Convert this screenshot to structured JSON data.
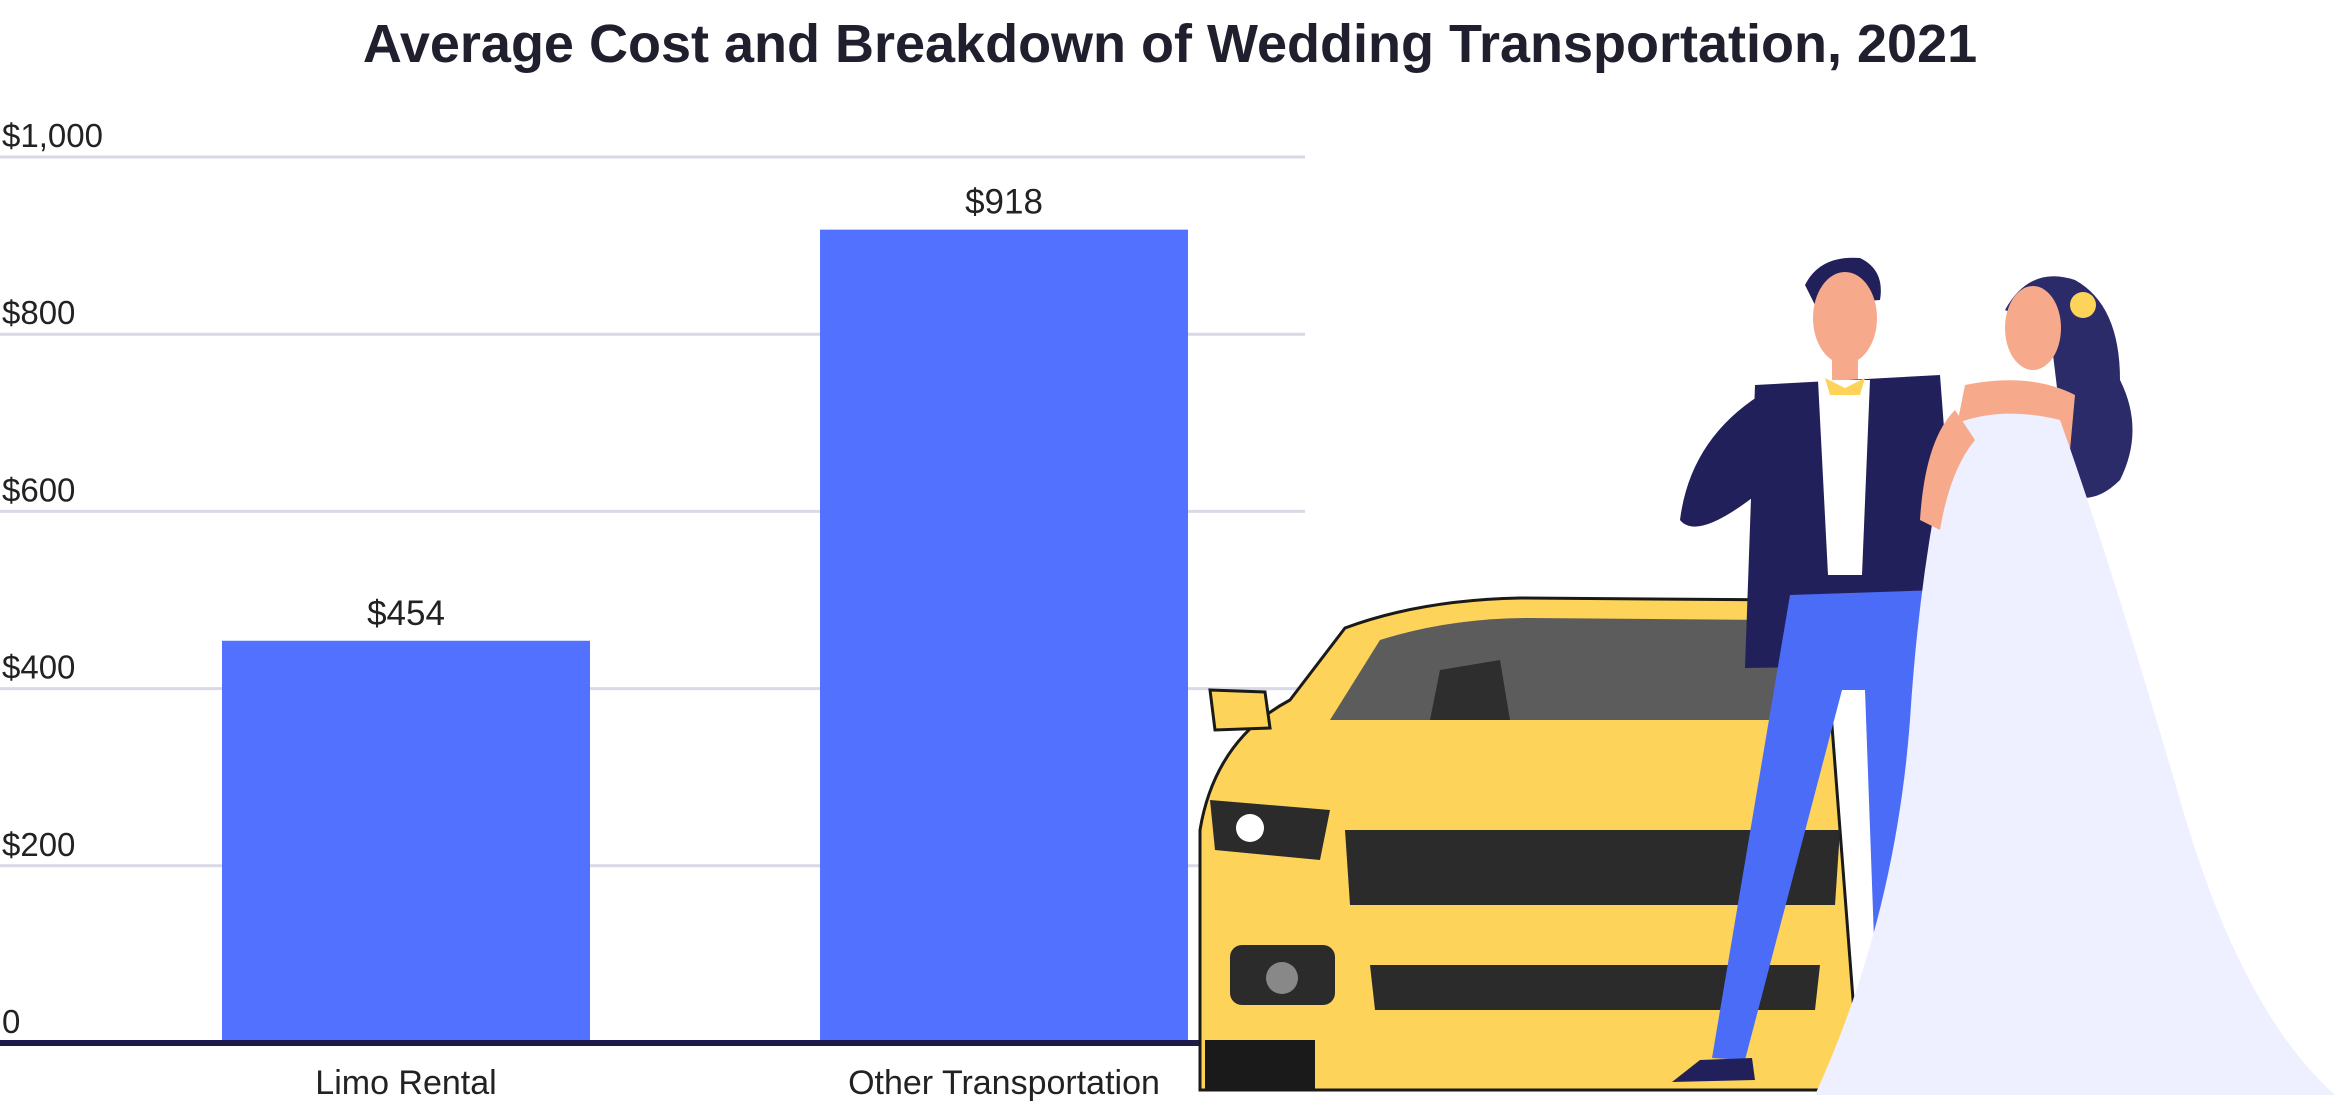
{
  "chart_data": {
    "type": "bar",
    "title": "Average Cost and Breakdown of Wedding Transportation, 2021",
    "xlabel": "",
    "ylabel": "",
    "categories": [
      "Limo Rental",
      "Other Transportation"
    ],
    "values": [
      454,
      918
    ],
    "data_labels": [
      "$454",
      "$918"
    ],
    "ylim": [
      0,
      1000
    ],
    "yticks": [
      0,
      200,
      400,
      600,
      800,
      1000
    ],
    "ytick_labels": [
      "0",
      "$200",
      "$400",
      "$600",
      "$800",
      "$1,000"
    ],
    "grid": true,
    "legend": "none",
    "colors": {
      "bar": "#5271ff",
      "axis": "#1e1b4b",
      "grid": "#d9d9e6",
      "car": "#fdd35a",
      "suit": "#22205a",
      "trousers": "#4b6cf7",
      "skin": "#f7a98c",
      "dress": "#eef0ff"
    },
    "illustration": [
      "yellow-car-icon",
      "groom-icon",
      "bride-icon"
    ]
  }
}
